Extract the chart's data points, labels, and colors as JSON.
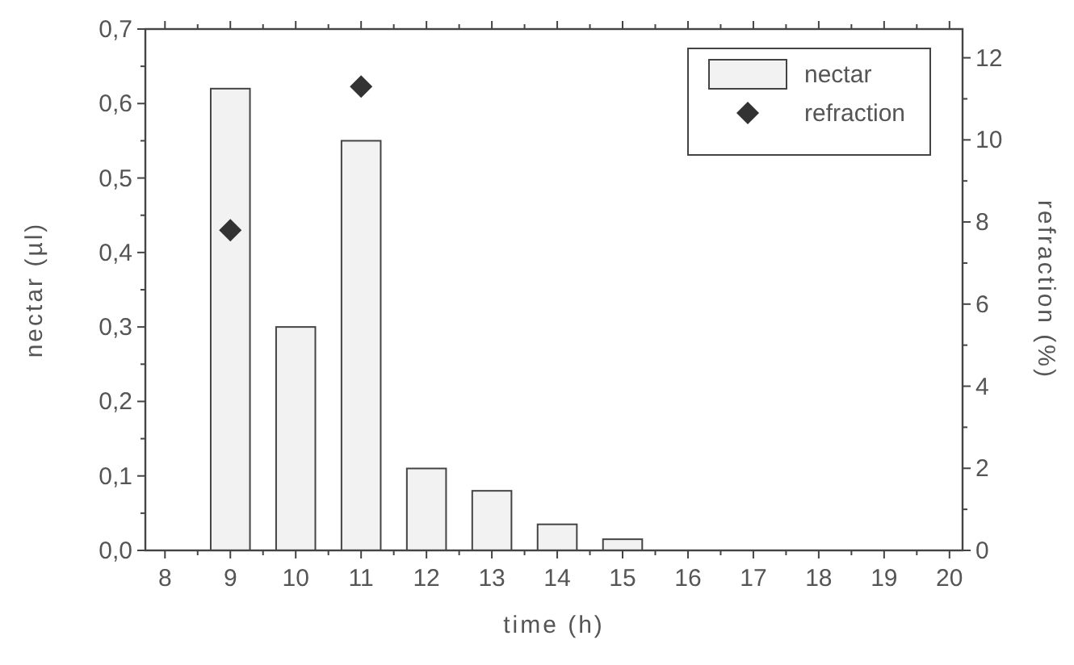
{
  "chart_data": {
    "type": "bar",
    "xlabel": "time (h)",
    "ylabel": "nectar (µl)",
    "y2label": "refraction (%)",
    "x": [
      9,
      10,
      11,
      12,
      13,
      14,
      15
    ],
    "series": [
      {
        "name": "nectar",
        "color": "#f2f2f2",
        "values": [
          0.62,
          0.3,
          0.55,
          0.11,
          0.08,
          0.035,
          0.015
        ]
      },
      {
        "name": "refraction",
        "type": "scatter",
        "axis": "y2",
        "color": "#333333",
        "x": [
          9,
          11
        ],
        "values": [
          7.8,
          11.3
        ]
      }
    ],
    "xlim": [
      7.7,
      20.2
    ],
    "xticks": [
      8,
      {
        "value": 8.5,
        "label": null
      },
      9,
      {
        "value": 9.5,
        "label": null
      },
      10,
      {
        "value": 10.5,
        "label": null
      },
      11,
      {
        "value": 11.5,
        "label": null
      },
      12,
      {
        "value": 12.5,
        "label": null
      },
      13,
      {
        "value": 13.5,
        "label": null
      },
      14,
      {
        "value": 14.5,
        "label": null
      },
      15,
      {
        "value": 15.5,
        "label": null
      },
      16,
      {
        "value": 16.5,
        "label": null
      },
      17,
      {
        "value": 17.5,
        "label": null
      },
      18,
      {
        "value": 18.5,
        "label": null
      },
      19,
      {
        "value": 19.5,
        "label": null
      },
      20
    ],
    "ylim": [
      0,
      0.7
    ],
    "yticks": [
      {
        "value": 0,
        "label": "0,0"
      },
      {
        "value": 0.05,
        "label": null
      },
      {
        "value": 0.1,
        "label": "0,1"
      },
      {
        "value": 0.15,
        "label": null
      },
      {
        "value": 0.2,
        "label": "0,2"
      },
      {
        "value": 0.25,
        "label": null
      },
      {
        "value": 0.3,
        "label": "0,3"
      },
      {
        "value": 0.35,
        "label": null
      },
      {
        "value": 0.4,
        "label": "0,4"
      },
      {
        "value": 0.45,
        "label": null
      },
      {
        "value": 0.5,
        "label": "0,5"
      },
      {
        "value": 0.55,
        "label": null
      },
      {
        "value": 0.6,
        "label": "0,6"
      },
      {
        "value": 0.65,
        "label": null
      },
      {
        "value": 0.7,
        "label": "0,7"
      }
    ],
    "y2lim": [
      0,
      12.7
    ],
    "y2ticks": [
      0,
      {
        "value": 1,
        "label": null
      },
      2,
      {
        "value": 3,
        "label": null
      },
      4,
      {
        "value": 5,
        "label": null
      },
      6,
      {
        "value": 7,
        "label": null
      },
      8,
      {
        "value": 9,
        "label": null
      },
      10,
      {
        "value": 11,
        "label": null
      },
      12
    ],
    "legend": "top right",
    "marker": "diamond",
    "grid": false
  }
}
